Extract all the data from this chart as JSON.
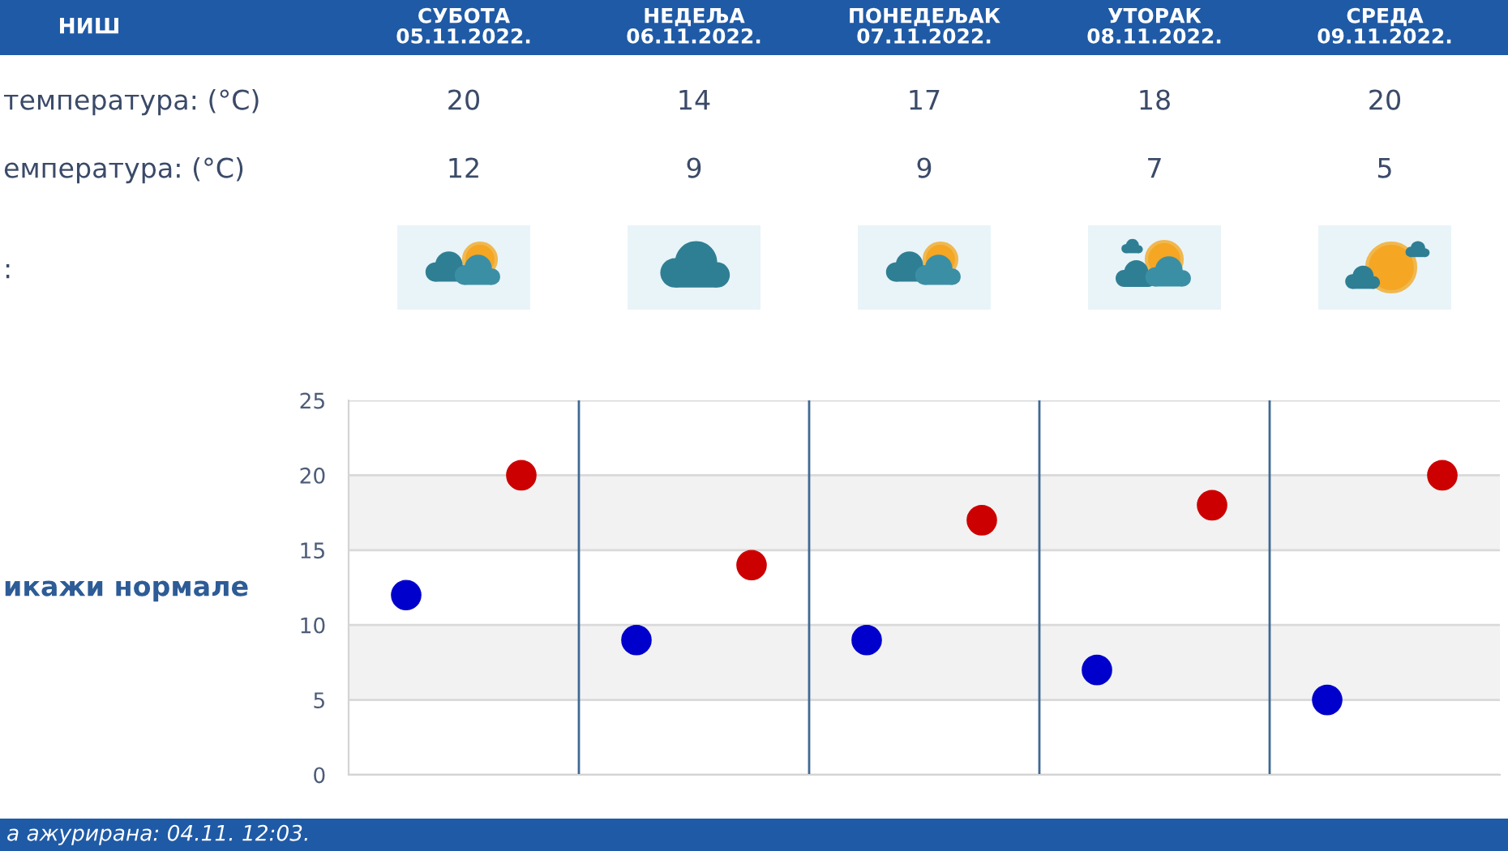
{
  "chart_data": {
    "type": "scatter",
    "title": "НИШ",
    "categories": [
      null,
      null,
      null,
      null,
      null
    ],
    "series": [
      {
        "color": "#cc0000",
        "values": [
          20,
          14,
          17,
          18,
          20
        ]
      },
      {
        "color": "#0000cc",
        "values": [
          12,
          9,
          9,
          7,
          5
        ]
      }
    ],
    "ylim": [
      0,
      25
    ],
    "yticks": [
      0,
      5,
      10,
      15,
      20,
      25
    ],
    "grid": true,
    "marker": "circle",
    "bands": [
      {
        "axis": "y",
        "from": 5,
        "to": 10,
        "color": "#f2f2f2"
      },
      {
        "axis": "y",
        "from": 15,
        "to": 20,
        "color": "#f2f2f2"
      }
    ],
    "data_labels": true,
    "annotations": [
      "СУБОТА\n05.11.2022.",
      "НЕДЕЉА\n06.11.2022.",
      "ПОНЕДЕЉАК\n07.11.2022.",
      "УТОРАК\n08.11.2022.",
      "СРЕДА\n09.11.2022.",
      "температура: (°C)",
      "емпература: (°C)",
      ":",
      "икажи нормале",
      "а ажурирана: 04.11. 12:03."
    ]
  }
}
